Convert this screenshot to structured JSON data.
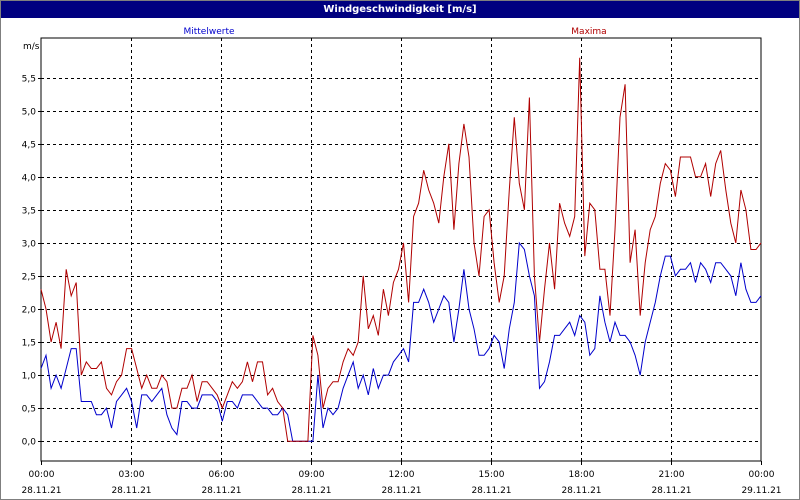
{
  "window": {
    "title": "Windgeschwindigkeit [m/s]"
  },
  "chart_data": {
    "type": "line",
    "title": "Windgeschwindigkeit [m/s]",
    "ylabel": "m/s",
    "ylim": [
      -0.3,
      6.1
    ],
    "yticks": [
      0.0,
      0.5,
      1.0,
      1.5,
      2.0,
      2.5,
      3.0,
      3.5,
      4.0,
      4.5,
      5.0,
      5.5
    ],
    "ytick_labels": [
      "0,0",
      "0,5",
      "1,0",
      "1,5",
      "2,0",
      "2,5",
      "3,0",
      "3,5",
      "4,0",
      "4,5",
      "5,0",
      "5,5"
    ],
    "x_range_hours": [
      0,
      24
    ],
    "xticks": [
      {
        "time": "00:00",
        "date": "28.11.21"
      },
      {
        "time": "03:00",
        "date": "28.11.21"
      },
      {
        "time": "06:00",
        "date": "28.11.21"
      },
      {
        "time": "09:00",
        "date": "28.11.21"
      },
      {
        "time": "12:00",
        "date": "28.11.21"
      },
      {
        "time": "15:00",
        "date": "28.11.21"
      },
      {
        "time": "18:00",
        "date": "28.11.21"
      },
      {
        "time": "21:00",
        "date": "28.11.21"
      },
      {
        "time": "00:00",
        "date": "29.11.21"
      }
    ],
    "grid": true,
    "series": [
      {
        "name": "Mittelwerte",
        "color": "#0000cc",
        "values": [
          1.1,
          1.3,
          0.8,
          1.0,
          0.8,
          1.1,
          1.4,
          1.4,
          0.6,
          0.6,
          0.6,
          0.4,
          0.4,
          0.5,
          0.2,
          0.6,
          0.7,
          0.8,
          0.6,
          0.2,
          0.7,
          0.7,
          0.6,
          0.7,
          0.8,
          0.4,
          0.2,
          0.1,
          0.6,
          0.6,
          0.5,
          0.5,
          0.7,
          0.7,
          0.7,
          0.6,
          0.3,
          0.6,
          0.6,
          0.5,
          0.7,
          0.7,
          0.7,
          0.6,
          0.5,
          0.5,
          0.4,
          0.4,
          0.5,
          0.4,
          0.0,
          0.0,
          0.0,
          0.0,
          0.0,
          1.0,
          0.2,
          0.5,
          0.4,
          0.5,
          0.8,
          1.0,
          1.2,
          0.8,
          1.0,
          0.7,
          1.1,
          0.8,
          1.0,
          1.0,
          1.2,
          1.3,
          1.4,
          1.2,
          2.1,
          2.1,
          2.3,
          2.1,
          1.8,
          2.0,
          2.2,
          2.1,
          1.5,
          2.0,
          2.6,
          2.0,
          1.7,
          1.3,
          1.3,
          1.4,
          1.6,
          1.5,
          1.1,
          1.7,
          2.1,
          3.0,
          2.9,
          2.5,
          2.2,
          0.8,
          0.9,
          1.2,
          1.6,
          1.6,
          1.7,
          1.8,
          1.6,
          1.9,
          1.8,
          1.3,
          1.4,
          2.2,
          1.8,
          1.5,
          1.8,
          1.6,
          1.6,
          1.5,
          1.3,
          1.0,
          1.5,
          1.8,
          2.1,
          2.5,
          2.8,
          2.8,
          2.5,
          2.6,
          2.6,
          2.7,
          2.4,
          2.7,
          2.6,
          2.4,
          2.7,
          2.7,
          2.6,
          2.5,
          2.2,
          2.7,
          2.3,
          2.1,
          2.1,
          2.2
        ]
      },
      {
        "name": "Maxima",
        "color": "#b00000",
        "values": [
          2.3,
          2.0,
          1.5,
          1.8,
          1.4,
          2.6,
          2.2,
          2.4,
          1.0,
          1.2,
          1.1,
          1.1,
          1.2,
          0.8,
          0.7,
          0.9,
          1.0,
          1.4,
          1.4,
          1.1,
          0.8,
          1.0,
          0.8,
          0.8,
          1.0,
          0.9,
          0.5,
          0.5,
          0.8,
          0.8,
          1.0,
          0.6,
          0.9,
          0.9,
          0.8,
          0.7,
          0.5,
          0.7,
          0.9,
          0.8,
          0.9,
          1.2,
          0.9,
          1.2,
          1.2,
          0.7,
          0.8,
          0.6,
          0.5,
          0.0,
          0.0,
          0.0,
          0.0,
          0.0,
          1.6,
          1.3,
          0.5,
          0.8,
          0.9,
          0.9,
          1.2,
          1.4,
          1.3,
          1.5,
          2.5,
          1.7,
          1.9,
          1.6,
          2.3,
          1.9,
          2.4,
          2.6,
          3.0,
          2.1,
          3.4,
          3.6,
          4.1,
          3.8,
          3.6,
          3.3,
          4.0,
          4.5,
          3.2,
          4.2,
          4.8,
          4.3,
          3.0,
          2.5,
          3.4,
          3.5,
          2.7,
          2.1,
          2.5,
          3.8,
          4.9,
          3.9,
          3.5,
          5.2,
          2.5,
          1.5,
          2.3,
          3.0,
          2.3,
          3.6,
          3.3,
          3.1,
          3.4,
          5.8,
          2.8,
          3.6,
          3.5,
          2.6,
          2.6,
          1.9,
          3.2,
          4.9,
          5.4,
          2.7,
          3.2,
          1.9,
          2.7,
          3.2,
          3.4,
          3.9,
          4.2,
          4.1,
          3.7,
          4.3,
          4.3,
          4.3,
          4.0,
          4.0,
          4.2,
          3.7,
          4.2,
          4.4,
          3.8,
          3.3,
          3.0,
          3.8,
          3.5,
          2.9,
          2.9,
          3.0
        ]
      }
    ]
  }
}
